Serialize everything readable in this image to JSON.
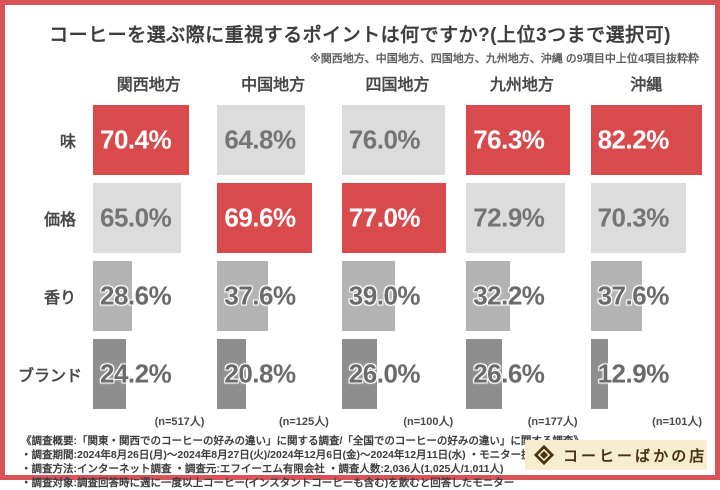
{
  "title": "コーヒーを選ぶ際に重視するポイントは何ですか?(上位3つまで選択可)",
  "subtitle": "※関西地方、中国地方、四国地方、九州地方、沖縄 の9項目中上位4項目抜粋粋",
  "columns": [
    "関西地方",
    "中国地方",
    "四国地方",
    "九州地方",
    "沖縄"
  ],
  "sample_sizes": [
    "(n=517人)",
    "(n=125人)",
    "(n=100人)",
    "(n=177人)",
    "(n=101人)"
  ],
  "chart_data": {
    "type": "bar",
    "orientation": "horizontal-blocks",
    "title": "コーヒーを選ぶ際に重視するポイントは何ですか?(上位3つまで選択可)",
    "categories": [
      "関西地方",
      "中国地方",
      "四国地方",
      "九州地方",
      "沖縄"
    ],
    "series": [
      {
        "name": "味",
        "values": [
          70.4,
          64.8,
          76.0,
          76.3,
          82.2
        ]
      },
      {
        "name": "価格",
        "values": [
          65.0,
          69.6,
          77.0,
          72.9,
          70.3
        ]
      },
      {
        "name": "香り",
        "values": [
          28.6,
          37.6,
          39.0,
          32.2,
          37.6
        ]
      },
      {
        "name": "ブランド",
        "values": [
          24.2,
          20.8,
          26.0,
          26.6,
          12.9
        ]
      }
    ],
    "value_unit": "%",
    "sample_sizes": [
      517,
      125,
      100,
      177,
      101
    ],
    "highlight_rule": "max value in each region column shown in red",
    "legend_position": "none",
    "grid": false
  },
  "row_styles": [
    {
      "bar_color": "#dcdcdc",
      "text_color": "#757575",
      "halo": false
    },
    {
      "bar_color": "#dcdcdc",
      "text_color": "#757575",
      "halo": false
    },
    {
      "bar_color": "#b3b3b3",
      "text_color": "#6b6b6b",
      "halo": true
    },
    {
      "bar_color": "#8e8e8e",
      "text_color": "#6b6b6b",
      "halo": true
    }
  ],
  "colors": {
    "accent_red": "#d94a4d",
    "highlight_text": "#ffffff",
    "frame_border": "#d95458",
    "logo_bg": "#f7eecf",
    "logo_brown": "#49300f"
  },
  "footer": {
    "lines": [
      "《調査概要:「関東・関西でのコーヒーの好みの違い」に関する調査/「全国でのコーヒーの好みの違い」に関する調査》",
      "・調査期間:2024年8月26日(月)〜2024年8月27日(火)/2024年12月6日(金)〜2024年12月11日(水) ・モニター提供元:PRIZMAリサーチ",
      "・調査方法:インターネット調査  ・調査元:エフイーエム有限会社  ・調査人数:2,036人(1,025人/1,011人)",
      "・調査対象:調査回答時に週に一度以上コーヒー(インスタントコーヒーも含む)を飲むと回答したモニター"
    ]
  },
  "logo": {
    "text": "コーヒーばかの店",
    "icon": "diamond-icon"
  }
}
